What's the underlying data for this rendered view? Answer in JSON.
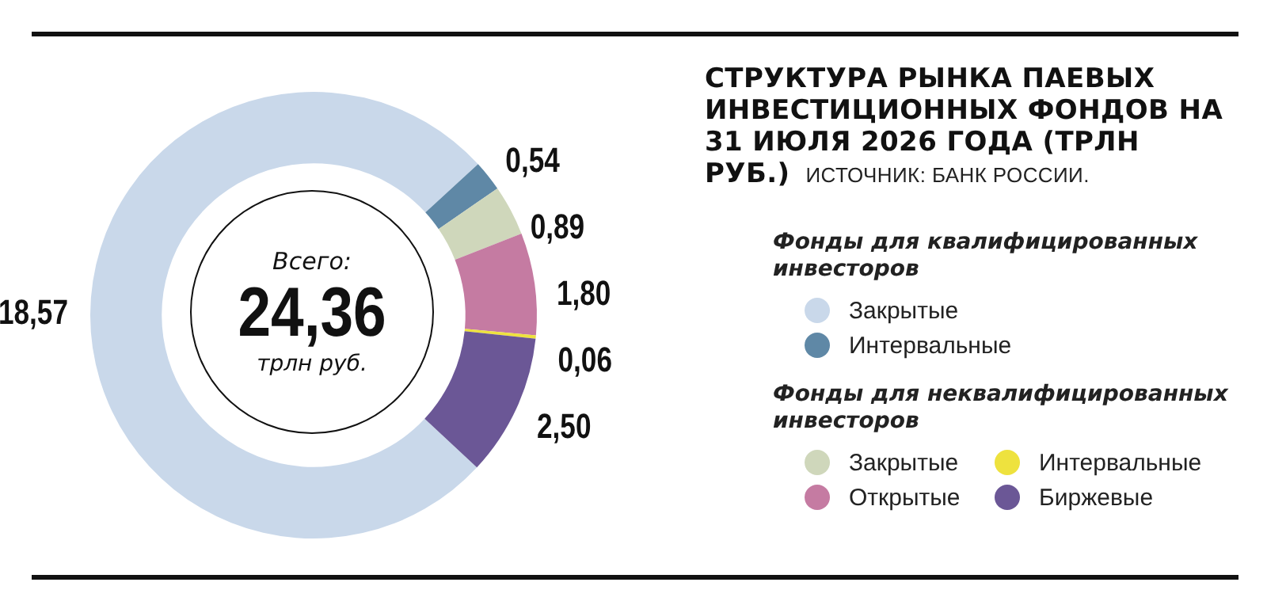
{
  "chart_data": {
    "type": "donut",
    "title": "СТРУКТУРА РЫНКА ПАЕВЫХ ИНВЕСТИЦИОННЫХ ФОНДОВ НА 31 ИЮЛЯ 2026 ГОДА (ТРЛН РУБ.)",
    "annotations": [
      "ИСТОЧНИК: БАНК РОССИИ.",
      "Фонды для квалифицированных инвесторов",
      "Фонды для неквалифицированных инвесторов",
      "Всего:",
      "24,36",
      "трлн руб."
    ],
    "categories": [
      "Закрытые",
      "Интервальные",
      "Закрытые",
      "Открытые",
      "Интервальные",
      "Биржевые"
    ],
    "values": [
      18.57,
      0.54,
      0.89,
      1.8,
      0.06,
      2.5
    ],
    "value_labels": [
      "18,57",
      "0,54",
      "0,89",
      "1,80",
      "0,06",
      "2,50"
    ],
    "colors": [
      "#c9d8ea",
      "#5f88a6",
      "#cfd7bb",
      "#c57ba2",
      "#eee23e",
      "#6b5796"
    ],
    "legend": "right"
  }
}
